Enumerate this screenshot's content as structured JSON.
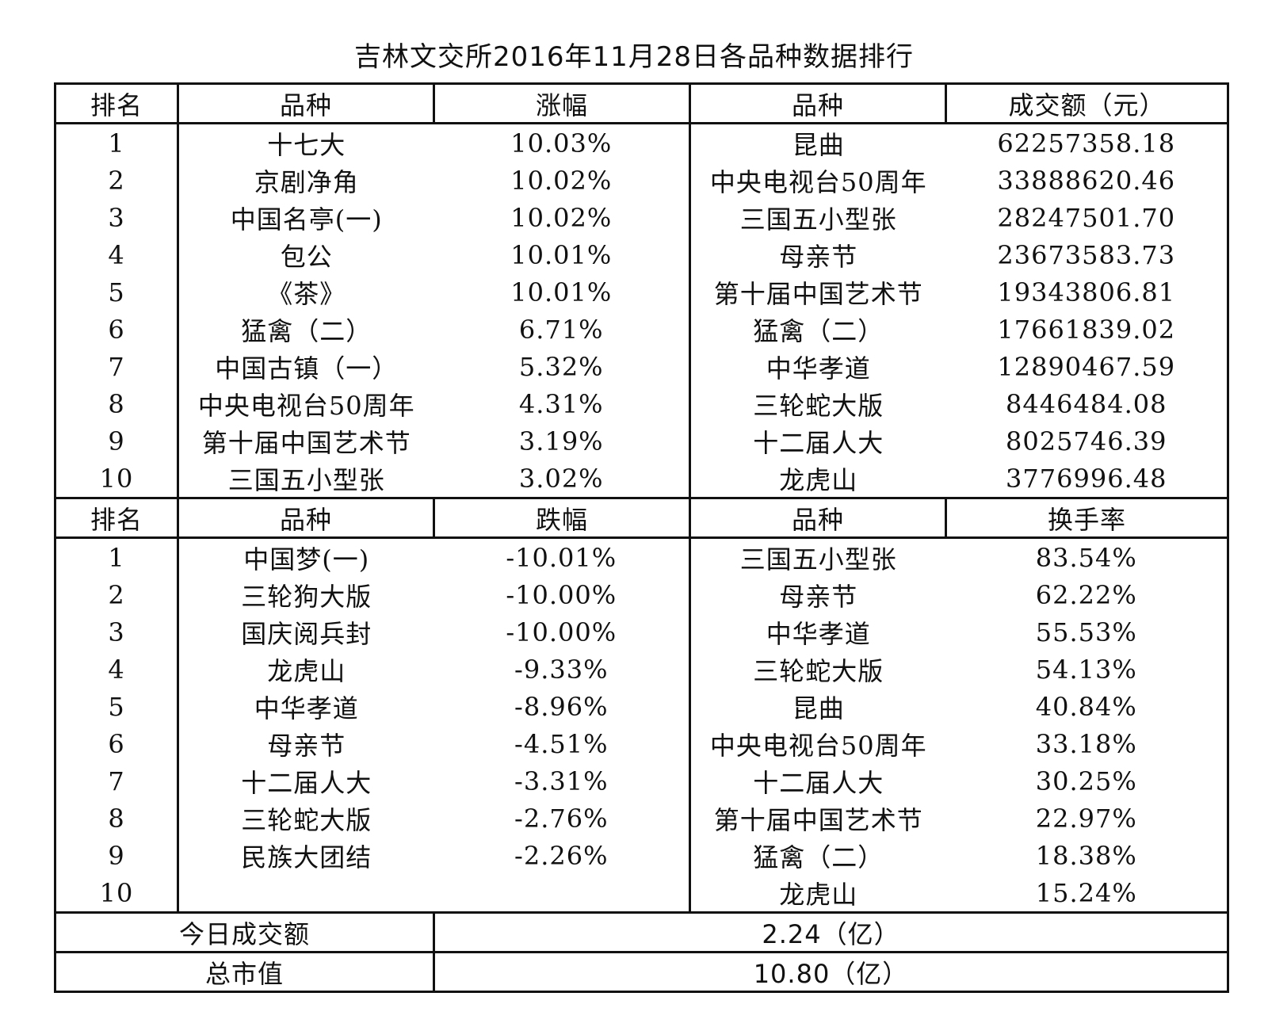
{
  "title": "吉林文交所2016年11月28日各品种数据排行",
  "top_section": {
    "headers": [
      "排名",
      "品种",
      "涨幅",
      "品种",
      "成交额（元）"
    ],
    "rows": [
      [
        "1",
        "十七大",
        "10.03%",
        "昆曲",
        "62257358.18"
      ],
      [
        "2",
        "京剧净角",
        "10.02%",
        "中央电视台50周年",
        "33888620.46"
      ],
      [
        "3",
        "中国名亭(一)",
        "10.02%",
        "三国五小型张",
        "28247501.70"
      ],
      [
        "4",
        "包公",
        "10.01%",
        "母亲节",
        "23673583.73"
      ],
      [
        "5",
        "《茶》",
        "10.01%",
        "第十届中国艺术节",
        "19343806.81"
      ],
      [
        "6",
        "猛禽（二）",
        "6.71%",
        "猛禽（二）",
        "17661839.02"
      ],
      [
        "7",
        "中国古镇（一）",
        "5.32%",
        "中华孝道",
        "12890467.59"
      ],
      [
        "8",
        "中央电视台50周年",
        "4.31%",
        "三轮蛇大版",
        "8446484.08"
      ],
      [
        "9",
        "第十届中国艺术节",
        "3.19%",
        "十二届人大",
        "8025746.39"
      ],
      [
        "10",
        "三国五小型张",
        "3.02%",
        "龙虎山",
        "3776996.48"
      ]
    ]
  },
  "bottom_section": {
    "headers": [
      "排名",
      "品种",
      "跌幅",
      "品种",
      "换手率"
    ],
    "rows": [
      [
        "1",
        "中国梦(一)",
        "-10.01%",
        "三国五小型张",
        "83.54%"
      ],
      [
        "2",
        "三轮狗大版",
        "-10.00%",
        "母亲节",
        "62.22%"
      ],
      [
        "3",
        "国庆阅兵封",
        "-10.00%",
        "中华孝道",
        "55.53%"
      ],
      [
        "4",
        "龙虎山",
        "-9.33%",
        "三轮蛇大版",
        "54.13%"
      ],
      [
        "5",
        "中华孝道",
        "-8.96%",
        "昆曲",
        "40.84%"
      ],
      [
        "6",
        "母亲节",
        "-4.51%",
        "中央电视台50周年",
        "33.18%"
      ],
      [
        "7",
        "十二届人大",
        "-3.31%",
        "十二届人大",
        "30.25%"
      ],
      [
        "8",
        "三轮蛇大版",
        "-2.76%",
        "第十届中国艺术节",
        "22.97%"
      ],
      [
        "9",
        "民族大团结",
        "-2.26%",
        "猛禽（二）",
        "18.38%"
      ],
      [
        "10",
        "",
        "",
        "龙虎山",
        "15.24%"
      ]
    ]
  },
  "summary": [
    {
      "label": "今日成交额",
      "value": "2.24（亿）"
    },
    {
      "label": "总市值",
      "value": "10.80（亿）"
    }
  ]
}
